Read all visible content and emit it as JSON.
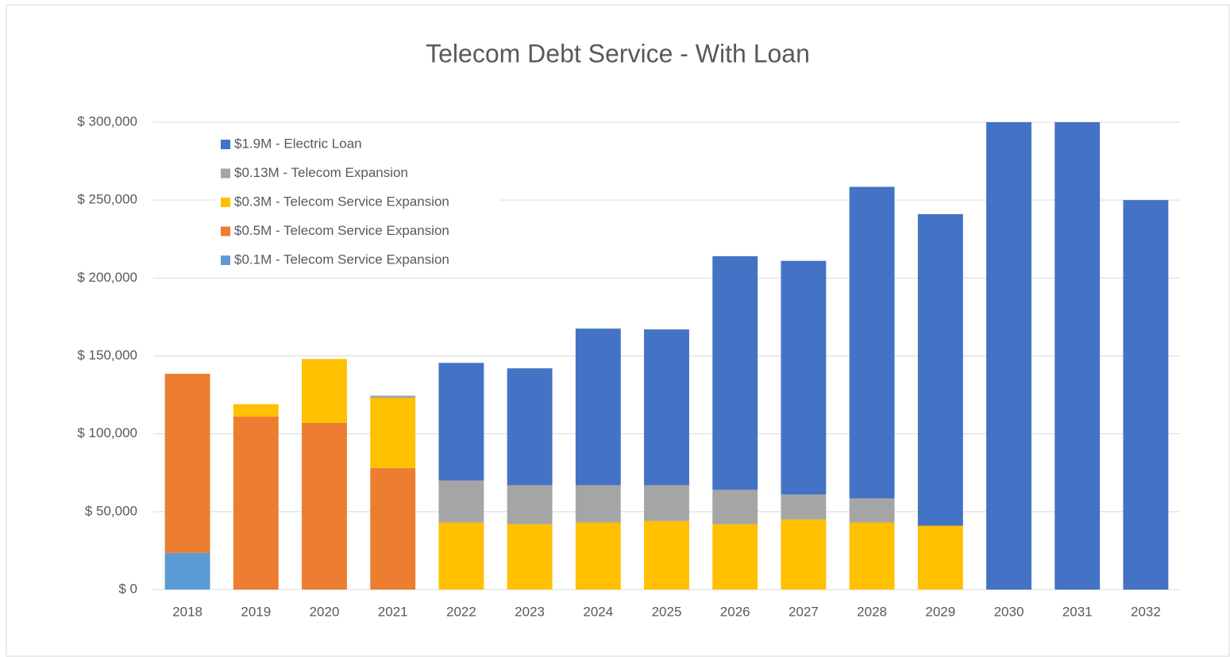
{
  "chart_data": {
    "type": "stacked-bar",
    "title": "Telecom Debt Service - With Loan",
    "categories": [
      "2018",
      "2019",
      "2020",
      "2021",
      "2022",
      "2023",
      "2024",
      "2025",
      "2026",
      "2027",
      "2028",
      "2029",
      "2030",
      "2031",
      "2032"
    ],
    "series": [
      {
        "name": "$0.1M - Telecom Service Expansion",
        "color": "#5b9bd5",
        "values": [
          23500,
          null,
          null,
          null,
          null,
          null,
          null,
          null,
          null,
          null,
          null,
          null,
          null,
          null,
          null
        ]
      },
      {
        "name": "$0.5M - Telecom Service Expansion",
        "color": "#ed7d31",
        "values": [
          115000,
          111000,
          107000,
          78000,
          null,
          null,
          null,
          null,
          null,
          null,
          null,
          null,
          null,
          null,
          null
        ]
      },
      {
        "name": "$0.3M - Telecom Service Expansion",
        "color": "#ffc000",
        "values": [
          null,
          8000,
          41000,
          45000,
          43000,
          42000,
          43000,
          44000,
          42000,
          45000,
          43000,
          41000,
          null,
          null,
          null
        ]
      },
      {
        "name": "$0.13M - Telecom Expansion",
        "color": "#a5a5a5",
        "values": [
          null,
          null,
          null,
          1500,
          27000,
          25000,
          24000,
          23000,
          22000,
          16000,
          15500,
          null,
          null,
          null,
          null
        ]
      },
      {
        "name": "$1.9M - Electric Loan",
        "color": "#4472c4",
        "values": [
          null,
          null,
          null,
          null,
          75500,
          75000,
          100500,
          100000,
          150000,
          150000,
          200000,
          200000,
          300000,
          300000,
          250000
        ]
      }
    ],
    "ylim": [
      0,
      300000
    ],
    "yticks": [
      {
        "value": 0,
        "label": "$ 0"
      },
      {
        "value": 50000,
        "label": "$ 50,000"
      },
      {
        "value": 100000,
        "label": "$ 100,000"
      },
      {
        "value": 150000,
        "label": "$ 150,000"
      },
      {
        "value": 200000,
        "label": "$ 200,000"
      },
      {
        "value": 250000,
        "label": "$ 250,000"
      },
      {
        "value": 300000,
        "label": "$ 300,000"
      }
    ],
    "grid": true,
    "legend": "top-left"
  }
}
